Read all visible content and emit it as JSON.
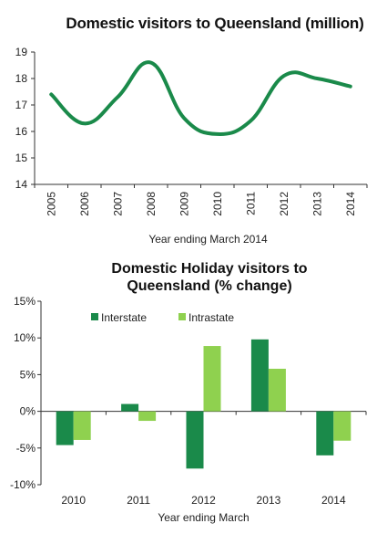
{
  "chart_data": [
    {
      "type": "line",
      "title": "Domestic visitors to Queensland (million)",
      "xlabel": "Year ending March 2014",
      "ylabel": "",
      "x": [
        "2005",
        "2006",
        "2007",
        "2008",
        "2009",
        "2010",
        "2011",
        "2012",
        "2013",
        "2014"
      ],
      "series": [
        {
          "values": [
            17.4,
            16.3,
            17.3,
            18.6,
            16.5,
            15.9,
            16.4,
            18.1,
            18.0,
            17.7
          ]
        }
      ],
      "ylim": [
        14,
        19
      ],
      "yticks": [
        "14",
        "15",
        "16",
        "17",
        "18",
        "19"
      ],
      "grid": false,
      "color": "#1a8a4a"
    },
    {
      "type": "bar",
      "title": "Domestic Holiday visitors to Queensland (% change)",
      "xlabel": "Year ending March",
      "ylabel": "",
      "categories": [
        "2010",
        "2011",
        "2012",
        "2013",
        "2014"
      ],
      "series": [
        {
          "name": "Interstate",
          "values": [
            -4.6,
            1.0,
            -7.8,
            9.8,
            -6.0
          ],
          "color": "#1a8a4a"
        },
        {
          "name": "Intrastate",
          "values": [
            -3.9,
            -1.3,
            8.9,
            5.8,
            -4.0
          ],
          "color": "#8fd14f"
        }
      ],
      "ylim": [
        -10,
        15
      ],
      "yticks": [
        "-10%",
        "-5%",
        "0%",
        "5%",
        "10%",
        "15%"
      ],
      "legend_position": "top-left",
      "grid": false
    }
  ]
}
